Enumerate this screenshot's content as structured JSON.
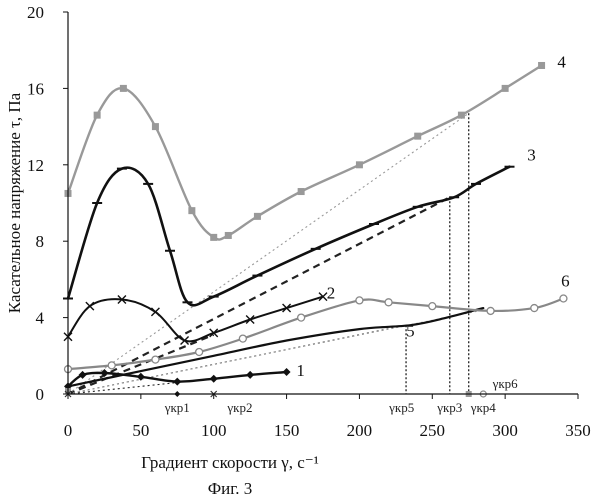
{
  "chart_data": {
    "type": "line",
    "xlabel": "Градиент скорости γ, с⁻¹",
    "ylabel": "Касательное напряжение τ, Па",
    "caption": "Фиг. 3",
    "xlim": [
      0,
      350
    ],
    "ylim": [
      0,
      20
    ],
    "xticks": [
      "0",
      "50",
      "100",
      "150",
      "200",
      "250",
      "300",
      "350"
    ],
    "yticks": [
      "0",
      "4",
      "8",
      "12",
      "16",
      "20"
    ],
    "grid": false,
    "series": [
      {
        "name": "1",
        "color": "#111111",
        "width": 2.4,
        "marker": "diamond",
        "x": [
          0,
          10,
          25,
          50,
          75,
          100,
          125,
          150
        ],
        "y": [
          0.4,
          1.0,
          1.1,
          0.9,
          0.65,
          0.8,
          1.0,
          1.15
        ],
        "dash_x": [
          0,
          75
        ],
        "dash_y": [
          0,
          0.6
        ]
      },
      {
        "name": "2",
        "color": "#111111",
        "width": 2.0,
        "marker": "x",
        "x": [
          0,
          15,
          37,
          60,
          80,
          100,
          125,
          150,
          175
        ],
        "y": [
          3.0,
          4.6,
          4.95,
          4.3,
          2.8,
          3.2,
          3.9,
          4.5,
          5.1
        ],
        "dash_x": [
          0,
          100
        ],
        "dash_y": [
          0,
          3.1
        ]
      },
      {
        "name": "3",
        "color": "#111111",
        "width": 2.6,
        "marker": "dash",
        "x": [
          0,
          20,
          37,
          55,
          70,
          82,
          100,
          130,
          170,
          210,
          240,
          265,
          280,
          303
        ],
        "y": [
          5.0,
          10.0,
          11.8,
          11.0,
          7.5,
          4.8,
          5.1,
          6.2,
          7.6,
          8.9,
          9.8,
          10.3,
          11.0,
          11.9
        ],
        "dash_x": [
          0,
          262
        ],
        "dash_y": [
          0,
          10.3
        ]
      },
      {
        "name": "4",
        "color": "#999999",
        "width": 2.4,
        "marker": "square",
        "x": [
          0,
          20,
          38,
          60,
          85,
          100,
          110,
          130,
          160,
          200,
          240,
          270,
          300,
          325
        ],
        "y": [
          10.5,
          14.6,
          16.0,
          14.0,
          9.6,
          8.2,
          8.3,
          9.3,
          10.6,
          12.0,
          13.5,
          14.6,
          16.0,
          17.2
        ],
        "dash_x": [
          0,
          275
        ],
        "dash_y": [
          0,
          14.7
        ]
      },
      {
        "name": "5",
        "color": "#111111",
        "width": 2.2,
        "marker": "none",
        "x": [
          0,
          50,
          100,
          150,
          200,
          235,
          260,
          285
        ],
        "y": [
          0.4,
          1.2,
          2.0,
          2.8,
          3.4,
          3.6,
          4.0,
          4.5
        ],
        "dash_x": [
          0,
          232
        ],
        "dash_y": [
          0,
          3.6
        ]
      },
      {
        "name": "6",
        "color": "#888888",
        "width": 2.2,
        "marker": "circle",
        "x": [
          0,
          30,
          60,
          90,
          120,
          160,
          200,
          220,
          250,
          290,
          320,
          340
        ],
        "y": [
          1.3,
          1.5,
          1.8,
          2.2,
          2.9,
          4.0,
          4.9,
          4.8,
          4.6,
          4.35,
          4.5,
          5.0
        ],
        "dash_x": [
          0,
          285
        ],
        "dash_y": [
          0,
          4.4
        ]
      }
    ],
    "critical_points": [
      {
        "label": "γкр1",
        "x": 75
      },
      {
        "label": "γкр2",
        "x": 100
      },
      {
        "label": "γкр5",
        "x": 232
      },
      {
        "label": "γкр3",
        "x": 262
      },
      {
        "label": "γкр4",
        "x": 275
      },
      {
        "label": "γкр6",
        "x": 285
      }
    ]
  }
}
